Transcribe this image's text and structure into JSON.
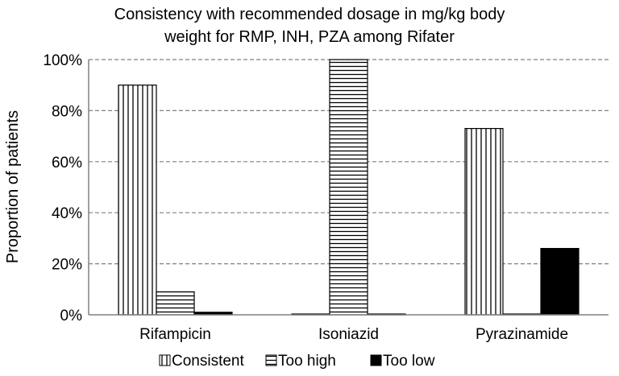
{
  "chart_data": {
    "type": "bar",
    "title": "Consistency with recommended dosage in mg/kg body weight for RMP, INH, PZA among Rifater",
    "title_lines": [
      "Consistency with recommended dosage in mg/kg body",
      "weight for RMP, INH, PZA among Rifater"
    ],
    "xlabel": "",
    "ylabel": "Proportion of patients",
    "categories": [
      "Rifampicin",
      "Isoniazid",
      "Pyrazinamide"
    ],
    "ylim": [
      0,
      100
    ],
    "yticks": [
      "0%",
      "20%",
      "40%",
      "60%",
      "80%",
      "100%"
    ],
    "ytick_values": [
      0,
      20,
      40,
      60,
      80,
      100
    ],
    "grid": true,
    "legend_position": "bottom",
    "series": [
      {
        "name": "Consistent",
        "values": [
          90,
          0,
          73
        ],
        "pattern": "vertical-lines",
        "color": "#000000"
      },
      {
        "name": "Too high",
        "values": [
          9,
          100,
          0
        ],
        "pattern": "horizontal-lines",
        "color": "#000000"
      },
      {
        "name": "Too low",
        "values": [
          1,
          0,
          26
        ],
        "pattern": "solid",
        "color": "#000000"
      }
    ]
  }
}
